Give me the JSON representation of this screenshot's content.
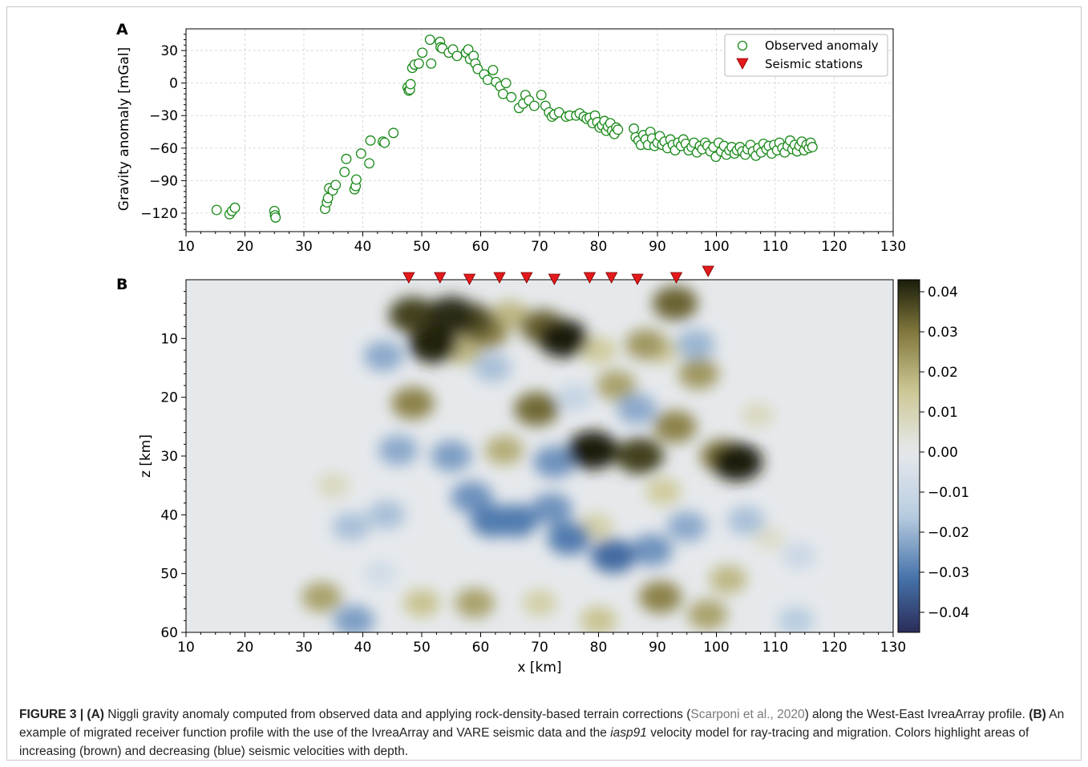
{
  "figure": {
    "panel_labels": [
      "A",
      "B"
    ],
    "caption": {
      "label": "FIGURE 3 | (A)",
      "part_a": " Niggli gravity anomaly computed from observed data and applying rock-density-based terrain corrections (",
      "citation": "Scarponi et al., 2020",
      "part_a_end": ") along the West-East IvreaArray profile. ",
      "label_b": "(B)",
      "part_b": " An example of migrated receiver function profile with the use of the IvreaArray and VARE seismic data and the ",
      "model_name": "iasp91",
      "part_b_end": " velocity model for ray-tracing and migration. Colors highlight areas of increasing (brown) and decreasing (blue) seismic velocities with depth."
    }
  },
  "chart_data": [
    {
      "type": "scatter",
      "panel": "A",
      "xlabel": "",
      "ylabel": "Gravity anomaly [mGal]",
      "xlim": [
        10,
        130
      ],
      "ylim": [
        -137,
        50
      ],
      "xticks": [
        10,
        20,
        30,
        40,
        50,
        60,
        70,
        80,
        90,
        100,
        110,
        120,
        130
      ],
      "yticks": [
        -120,
        -90,
        -60,
        -30,
        0,
        30
      ],
      "ytick_labels": [
        "−120",
        "−90",
        "−60",
        "−30",
        "0",
        "30"
      ],
      "grid": true,
      "legend_position": "top-right",
      "legend": [
        "Observed anomaly",
        "Seismic stations"
      ],
      "series": [
        {
          "name": "Observed anomaly",
          "marker": "open-circle",
          "color": "#1a8a1a",
          "points": [
            [
              15.2,
              -117
            ],
            [
              17.4,
              -121
            ],
            [
              17.8,
              -118
            ],
            [
              18.3,
              -115
            ],
            [
              25.0,
              -118
            ],
            [
              25.1,
              -122
            ],
            [
              25.2,
              -124
            ],
            [
              33.6,
              -116
            ],
            [
              33.9,
              -110
            ],
            [
              34.1,
              -106
            ],
            [
              34.3,
              -97
            ],
            [
              34.9,
              -99
            ],
            [
              35.4,
              -94
            ],
            [
              36.9,
              -82
            ],
            [
              37.2,
              -70
            ],
            [
              38.6,
              -98
            ],
            [
              38.8,
              -95
            ],
            [
              38.9,
              -89
            ],
            [
              39.7,
              -65
            ],
            [
              41.1,
              -74
            ],
            [
              41.3,
              -53
            ],
            [
              43.4,
              -54
            ],
            [
              43.7,
              -55
            ],
            [
              45.2,
              -46
            ],
            [
              47.6,
              -4
            ],
            [
              47.8,
              -7
            ],
            [
              48.0,
              -6
            ],
            [
              48.1,
              -1
            ],
            [
              48.4,
              14
            ],
            [
              48.8,
              17
            ],
            [
              49.5,
              18
            ],
            [
              50.1,
              28
            ],
            [
              51.4,
              40
            ],
            [
              51.6,
              18
            ],
            [
              53.1,
              38
            ],
            [
              53.2,
              33
            ],
            [
              53.5,
              32
            ],
            [
              54.6,
              28
            ],
            [
              55.3,
              31
            ],
            [
              56.0,
              25
            ],
            [
              57.5,
              28
            ],
            [
              57.9,
              31
            ],
            [
              58.2,
              22
            ],
            [
              58.8,
              25
            ],
            [
              59.1,
              18
            ],
            [
              59.5,
              13
            ],
            [
              60.6,
              8
            ],
            [
              61.2,
              3
            ],
            [
              62.1,
              12
            ],
            [
              62.6,
              1
            ],
            [
              63.3,
              -3
            ],
            [
              63.8,
              -10
            ],
            [
              64.3,
              0
            ],
            [
              65.2,
              -13
            ],
            [
              66.5,
              -23
            ],
            [
              67.2,
              -19
            ],
            [
              67.6,
              -11
            ],
            [
              68.2,
              -16
            ],
            [
              69.1,
              -21
            ],
            [
              70.3,
              -11
            ],
            [
              71.0,
              -21
            ],
            [
              71.6,
              -27
            ],
            [
              72.1,
              -31
            ],
            [
              72.5,
              -29
            ],
            [
              73.3,
              -27
            ],
            [
              74.5,
              -31
            ],
            [
              75.1,
              -30
            ],
            [
              76.2,
              -30
            ],
            [
              76.8,
              -28
            ],
            [
              77.5,
              -31
            ],
            [
              78.0,
              -33
            ],
            [
              78.5,
              -32
            ],
            [
              79.0,
              -37
            ],
            [
              79.4,
              -30
            ],
            [
              79.8,
              -36
            ],
            [
              80.2,
              -41
            ],
            [
              80.6,
              -39
            ],
            [
              81.0,
              -35
            ],
            [
              81.3,
              -44
            ],
            [
              81.6,
              -40
            ],
            [
              82.0,
              -37
            ],
            [
              82.3,
              -44
            ],
            [
              82.7,
              -47
            ],
            [
              83.0,
              -41
            ],
            [
              83.3,
              -43
            ],
            [
              86.0,
              -42
            ],
            [
              86.3,
              -50
            ],
            [
              86.8,
              -53
            ],
            [
              87.2,
              -57
            ],
            [
              87.6,
              -48
            ],
            [
              88.0,
              -52
            ],
            [
              88.4,
              -57
            ],
            [
              88.8,
              -45
            ],
            [
              89.1,
              -51
            ],
            [
              89.5,
              -58
            ],
            [
              90.0,
              -55
            ],
            [
              90.4,
              -49
            ],
            [
              90.8,
              -57
            ],
            [
              91.2,
              -54
            ],
            [
              91.7,
              -60
            ],
            [
              92.2,
              -52
            ],
            [
              92.6,
              -57
            ],
            [
              93.0,
              -62
            ],
            [
              93.5,
              -55
            ],
            [
              94.0,
              -58
            ],
            [
              94.4,
              -52
            ],
            [
              94.8,
              -56
            ],
            [
              95.3,
              -62
            ],
            [
              95.8,
              -59
            ],
            [
              96.2,
              -55
            ],
            [
              96.7,
              -64
            ],
            [
              97.2,
              -58
            ],
            [
              97.6,
              -61
            ],
            [
              98.1,
              -55
            ],
            [
              98.5,
              -58
            ],
            [
              99.0,
              -63
            ],
            [
              99.5,
              -59
            ],
            [
              99.9,
              -68
            ],
            [
              100.4,
              -55
            ],
            [
              100.8,
              -63
            ],
            [
              101.3,
              -58
            ],
            [
              101.7,
              -66
            ],
            [
              102.2,
              -62
            ],
            [
              102.6,
              -59
            ],
            [
              103.1,
              -65
            ],
            [
              103.5,
              -62
            ],
            [
              104.0,
              -59
            ],
            [
              104.4,
              -63
            ],
            [
              104.9,
              -66
            ],
            [
              105.3,
              -61
            ],
            [
              105.8,
              -57
            ],
            [
              106.2,
              -63
            ],
            [
              106.7,
              -67
            ],
            [
              107.1,
              -60
            ],
            [
              107.6,
              -64
            ],
            [
              108.0,
              -56
            ],
            [
              108.5,
              -61
            ],
            [
              108.9,
              -58
            ],
            [
              109.4,
              -65
            ],
            [
              109.8,
              -57
            ],
            [
              110.3,
              -62
            ],
            [
              110.7,
              -55
            ],
            [
              111.2,
              -60
            ],
            [
              111.6,
              -64
            ],
            [
              112.1,
              -58
            ],
            [
              112.5,
              -53
            ],
            [
              112.9,
              -61
            ],
            [
              113.3,
              -57
            ],
            [
              113.7,
              -63
            ],
            [
              114.1,
              -58
            ],
            [
              114.5,
              -54
            ],
            [
              114.9,
              -62
            ],
            [
              115.3,
              -57
            ],
            [
              115.7,
              -60
            ],
            [
              116.0,
              -55
            ],
            [
              116.3,
              -59
            ]
          ]
        }
      ]
    },
    {
      "type": "heatmap",
      "panel": "B",
      "xlabel": "x [km]",
      "ylabel": "z [km]",
      "xlim": [
        10,
        130
      ],
      "ylim": [
        60,
        0
      ],
      "xticks": [
        10,
        20,
        30,
        40,
        50,
        60,
        70,
        80,
        90,
        100,
        110,
        120,
        130
      ],
      "yticks": [
        10,
        20,
        30,
        40,
        50,
        60
      ],
      "colorbar": {
        "min": -0.045,
        "max": 0.043,
        "ticks": [
          0.04,
          0.03,
          0.02,
          0.01,
          0.0,
          -0.01,
          -0.02,
          -0.03,
          -0.04
        ],
        "tick_labels": [
          "0.04",
          "0.03",
          "0.02",
          "0.01",
          "0.00",
          "−0.01",
          "−0.02",
          "−0.03",
          "−0.04"
        ],
        "negative_color": "#2a2c58",
        "zero_color": "#e6e9ec",
        "positive_color": "#1a1d0a"
      },
      "seismic_stations": {
        "name": "Seismic stations",
        "color": "#e31a1c",
        "x": [
          47.8,
          53.1,
          58.1,
          63.2,
          67.8,
          72.5,
          78.5,
          82.2,
          86.6,
          93.2,
          98.6
        ]
      },
      "anomalies": [
        {
          "x": 48.5,
          "z": 6,
          "value": 0.038
        },
        {
          "x": 52.0,
          "z": 11,
          "value": 0.042
        },
        {
          "x": 55.0,
          "z": 6,
          "value": 0.041
        },
        {
          "x": 58.5,
          "z": 7,
          "value": 0.036
        },
        {
          "x": 61.0,
          "z": 9,
          "value": 0.028
        },
        {
          "x": 65.0,
          "z": 6,
          "value": 0.018
        },
        {
          "x": 70.5,
          "z": 8,
          "value": 0.033
        },
        {
          "x": 74.0,
          "z": 10,
          "value": 0.044
        },
        {
          "x": 57.0,
          "z": 12,
          "value": 0.018
        },
        {
          "x": 80.0,
          "z": 12,
          "value": 0.014
        },
        {
          "x": 88.0,
          "z": 11,
          "value": 0.024
        },
        {
          "x": 93.0,
          "z": 4,
          "value": 0.033
        },
        {
          "x": 97.0,
          "z": 16,
          "value": 0.024
        },
        {
          "x": 90.5,
          "z": 12,
          "value": 0.014
        },
        {
          "x": 48.5,
          "z": 21,
          "value": 0.028
        },
        {
          "x": 69.5,
          "z": 22,
          "value": 0.032
        },
        {
          "x": 62.0,
          "z": 15,
          "value": -0.018
        },
        {
          "x": 83.0,
          "z": 18,
          "value": 0.022
        },
        {
          "x": 93.0,
          "z": 25,
          "value": 0.028
        },
        {
          "x": 96.5,
          "z": 11,
          "value": -0.02
        },
        {
          "x": 43.5,
          "z": 13,
          "value": -0.022
        },
        {
          "x": 86.5,
          "z": 22,
          "value": -0.022
        },
        {
          "x": 79.0,
          "z": 29,
          "value": 0.046
        },
        {
          "x": 87.0,
          "z": 30,
          "value": 0.038
        },
        {
          "x": 103.5,
          "z": 31,
          "value": 0.047
        },
        {
          "x": 101.0,
          "z": 30,
          "value": 0.03
        },
        {
          "x": 64.0,
          "z": 29,
          "value": 0.02
        },
        {
          "x": 72.5,
          "z": 31,
          "value": -0.026
        },
        {
          "x": 46.0,
          "z": 29,
          "value": -0.022
        },
        {
          "x": 55.0,
          "z": 30,
          "value": -0.024
        },
        {
          "x": 58.5,
          "z": 37,
          "value": -0.026
        },
        {
          "x": 66.0,
          "z": 41,
          "value": -0.03
        },
        {
          "x": 62.0,
          "z": 41,
          "value": -0.03
        },
        {
          "x": 72.0,
          "z": 39,
          "value": -0.026
        },
        {
          "x": 75.0,
          "z": 44,
          "value": -0.03
        },
        {
          "x": 82.5,
          "z": 47,
          "value": -0.033
        },
        {
          "x": 89.0,
          "z": 46,
          "value": -0.026
        },
        {
          "x": 95.0,
          "z": 42,
          "value": -0.022
        },
        {
          "x": 105.0,
          "z": 41,
          "value": -0.018
        },
        {
          "x": 38.0,
          "z": 42,
          "value": -0.018
        },
        {
          "x": 44.0,
          "z": 40,
          "value": -0.018
        },
        {
          "x": 79.5,
          "z": 42,
          "value": 0.012
        },
        {
          "x": 91.0,
          "z": 36,
          "value": 0.014
        },
        {
          "x": 59.0,
          "z": 55,
          "value": 0.022
        },
        {
          "x": 50.0,
          "z": 55,
          "value": 0.016
        },
        {
          "x": 70.0,
          "z": 55,
          "value": 0.012
        },
        {
          "x": 80.0,
          "z": 58,
          "value": 0.016
        },
        {
          "x": 90.5,
          "z": 54,
          "value": 0.028
        },
        {
          "x": 98.5,
          "z": 57,
          "value": 0.022
        },
        {
          "x": 102.0,
          "z": 51,
          "value": 0.018
        },
        {
          "x": 33.0,
          "z": 54,
          "value": 0.022
        },
        {
          "x": 38.5,
          "z": 58,
          "value": -0.024
        },
        {
          "x": 113.5,
          "z": 58,
          "value": -0.016
        },
        {
          "x": 43.0,
          "z": 50,
          "value": -0.008
        },
        {
          "x": 35.0,
          "z": 35,
          "value": 0.008
        },
        {
          "x": 109.0,
          "z": 44,
          "value": 0.006
        },
        {
          "x": 114.0,
          "z": 47,
          "value": -0.01
        },
        {
          "x": 76.0,
          "z": 20,
          "value": -0.012
        },
        {
          "x": 107.0,
          "z": 23,
          "value": 0.008
        }
      ]
    }
  ]
}
